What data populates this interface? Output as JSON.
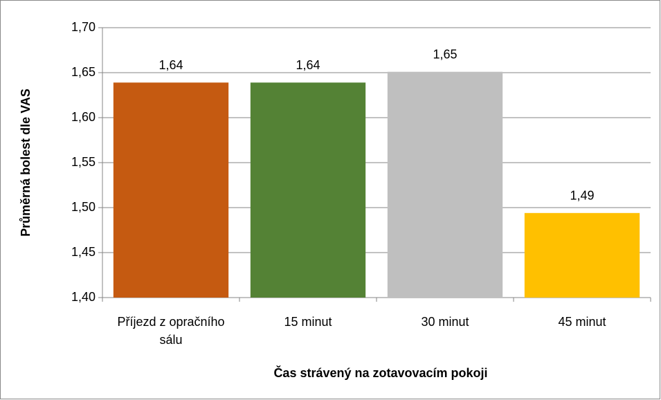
{
  "chart_data": {
    "type": "bar",
    "x_label": "Čas strávený na zotavovacím pokoji",
    "y_label": "Průměrná bolest dle VAS",
    "categories": [
      "Příjezd z opračního sálu",
      "15 minut",
      "30 minut",
      "45 minut"
    ],
    "values": [
      1.639,
      1.639,
      1.651,
      1.494
    ],
    "value_labels": [
      "1,64",
      "1,64",
      "1,65",
      "1,49"
    ],
    "colors": [
      "#c55a11",
      "#548235",
      "#bfbfbf",
      "#ffc000"
    ],
    "ylim": [
      1.4,
      1.7
    ],
    "yticks": [
      {
        "value": 1.4,
        "label": "1,40"
      },
      {
        "value": 1.45,
        "label": "1,45"
      },
      {
        "value": 1.5,
        "label": "1,50"
      },
      {
        "value": 1.55,
        "label": "1,55"
      },
      {
        "value": 1.6,
        "label": "1,60"
      },
      {
        "value": 1.65,
        "label": "1,65"
      },
      {
        "value": 1.7,
        "label": "1,70"
      }
    ],
    "grid": true
  }
}
